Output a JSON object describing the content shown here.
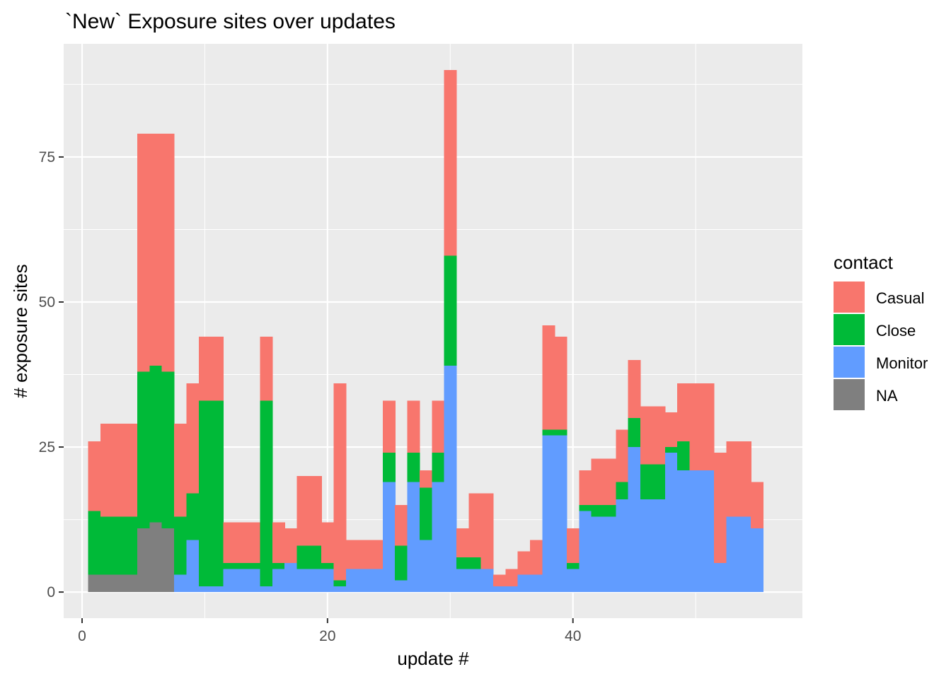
{
  "chart_data": {
    "type": "bar",
    "stacked": true,
    "title": "`New` Exposure sites over updates",
    "xlabel": "update #",
    "ylabel": "# exposure sites",
    "xlim": [
      -1.5,
      58.7
    ],
    "ylim": [
      -4.5,
      94.5
    ],
    "xticks": [
      0,
      20,
      40
    ],
    "yticks": [
      0,
      25,
      50,
      75
    ],
    "grid": true,
    "legend": {
      "title": "contact",
      "placement": "right",
      "entries": [
        "Casual",
        "Close",
        "Monitor",
        "NA"
      ]
    },
    "x": [
      1,
      2,
      3,
      4,
      5,
      6,
      7,
      8,
      9,
      10,
      11,
      12,
      13,
      14,
      15,
      16,
      17,
      18,
      19,
      20,
      21,
      22,
      23,
      24,
      25,
      26,
      27,
      28,
      29,
      30,
      31,
      32,
      33,
      34,
      35,
      36,
      37,
      38,
      39,
      40,
      41,
      42,
      43,
      44,
      45,
      46,
      47,
      48,
      49,
      50,
      51,
      52,
      53,
      54,
      55
    ],
    "series": [
      {
        "name": "NA",
        "color": "#7f7f7f",
        "values": [
          3,
          3,
          3,
          3,
          11,
          12,
          11,
          0,
          0,
          0,
          0,
          0,
          0,
          0,
          0,
          0,
          0,
          0,
          0,
          0,
          0,
          0,
          0,
          0,
          0,
          0,
          0,
          0,
          0,
          0,
          0,
          0,
          0,
          0,
          0,
          0,
          0,
          0,
          0,
          0,
          0,
          0,
          0,
          0,
          0,
          0,
          0,
          0,
          0,
          0,
          0,
          0,
          0,
          0,
          0
        ]
      },
      {
        "name": "Monitor",
        "color": "#619cff",
        "values": [
          0,
          0,
          0,
          0,
          0,
          0,
          0,
          3,
          9,
          1,
          1,
          4,
          4,
          4,
          1,
          4,
          5,
          4,
          4,
          4,
          1,
          4,
          4,
          4,
          19,
          2,
          19,
          9,
          19,
          39,
          4,
          4,
          4,
          1,
          1,
          3,
          3,
          27,
          27,
          4,
          14,
          13,
          13,
          16,
          25,
          16,
          16,
          24,
          21,
          21,
          21,
          5,
          13,
          13,
          11
        ]
      },
      {
        "name": "Close",
        "color": "#00ba38",
        "values": [
          11,
          10,
          10,
          10,
          27,
          27,
          27,
          10,
          8,
          32,
          32,
          1,
          1,
          1,
          32,
          1,
          0,
          4,
          4,
          1,
          1,
          0,
          0,
          0,
          5,
          6,
          5,
          9,
          5,
          19,
          2,
          2,
          0,
          0,
          0,
          0,
          0,
          1,
          1,
          1,
          1,
          2,
          2,
          3,
          5,
          6,
          6,
          1,
          5,
          0,
          0,
          0,
          0,
          0,
          0
        ]
      },
      {
        "name": "Casual",
        "color": "#f8766d",
        "values": [
          12,
          16,
          16,
          16,
          41,
          40,
          41,
          16,
          19,
          11,
          11,
          7,
          7,
          7,
          11,
          7,
          6,
          12,
          12,
          7,
          34,
          5,
          5,
          5,
          9,
          7,
          9,
          3,
          9,
          32,
          5,
          11,
          13,
          2,
          3,
          4,
          6,
          18,
          16,
          6,
          6,
          8,
          8,
          9,
          10,
          10,
          10,
          6,
          10,
          15,
          15,
          19,
          13,
          13,
          8
        ]
      }
    ]
  }
}
